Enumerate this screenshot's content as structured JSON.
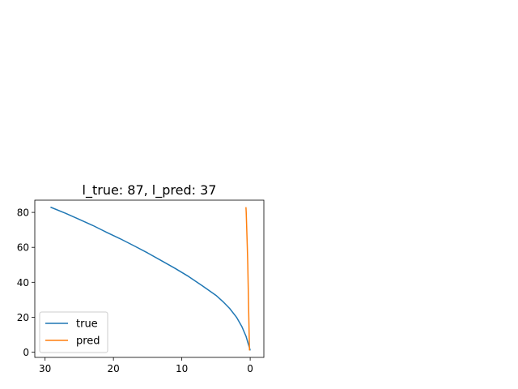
{
  "chart_data": {
    "type": "line",
    "title": "l_true: 87, l_pred: 37",
    "xlabel": "",
    "ylabel": "",
    "xlim": [
      31.5,
      -2.0
    ],
    "ylim": [
      -3,
      87
    ],
    "x_inverted": true,
    "xticks": [
      30,
      20,
      10,
      0
    ],
    "yticks": [
      0,
      20,
      40,
      60,
      80
    ],
    "grid": false,
    "legend_position": "lower-left",
    "series": [
      {
        "name": "true",
        "color": "#1f77b4",
        "points": [
          [
            29.2,
            83.0
          ],
          [
            27.0,
            79.5
          ],
          [
            25.0,
            76.0
          ],
          [
            23.0,
            72.5
          ],
          [
            21.0,
            68.6
          ],
          [
            19.0,
            64.9
          ],
          [
            17.0,
            60.9
          ],
          [
            15.0,
            56.8
          ],
          [
            13.0,
            52.4
          ],
          [
            11.0,
            48.0
          ],
          [
            9.0,
            43.3
          ],
          [
            7.0,
            38.0
          ],
          [
            5.0,
            32.5
          ],
          [
            4.0,
            29.0
          ],
          [
            3.0,
            25.0
          ],
          [
            2.0,
            20.0
          ],
          [
            1.2,
            14.5
          ],
          [
            0.6,
            9.0
          ],
          [
            0.3,
            5.0
          ],
          [
            0.1,
            2.5
          ],
          [
            0.0,
            1.0
          ]
        ]
      },
      {
        "name": "pred",
        "color": "#ff7f0e",
        "points": [
          [
            0.1,
            1.0
          ],
          [
            0.15,
            10.0
          ],
          [
            0.2,
            20.0
          ],
          [
            0.25,
            30.0
          ],
          [
            0.3,
            40.0
          ],
          [
            0.35,
            50.0
          ],
          [
            0.42,
            60.0
          ],
          [
            0.5,
            70.0
          ],
          [
            0.58,
            80.0
          ],
          [
            0.62,
            83.0
          ]
        ]
      }
    ]
  }
}
